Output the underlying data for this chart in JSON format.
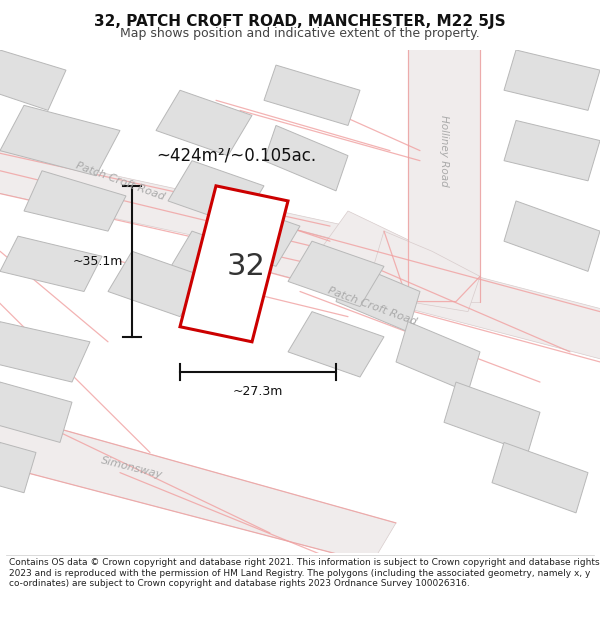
{
  "title": "32, PATCH CROFT ROAD, MANCHESTER, M22 5JS",
  "subtitle": "Map shows position and indicative extent of the property.",
  "footer": "Contains OS data © Crown copyright and database right 2021. This information is subject to Crown copyright and database rights 2023 and is reproduced with the permission of HM Land Registry. The polygons (including the associated geometry, namely x, y co-ordinates) are subject to Crown copyright and database rights 2023 Ordnance Survey 100026316.",
  "area_label": "~424m²/~0.105ac.",
  "dim_width": "~27.3m",
  "dim_height": "~35.1m",
  "number_label": "32",
  "map_bg": "#ffffff",
  "road_fill": "#f0ecec",
  "road_edge": "#d8cccc",
  "road_red_line": "#f0a0a0",
  "building_fill": "#e0e0e0",
  "building_edge": "#b8b8b8",
  "plot_edge_color": "#cc0000",
  "dim_color": "#111111",
  "street_label_color": "#aaaaaa",
  "title_color": "#111111",
  "title_fontsize": 11,
  "subtitle_fontsize": 9,
  "footer_fontsize": 6.5
}
